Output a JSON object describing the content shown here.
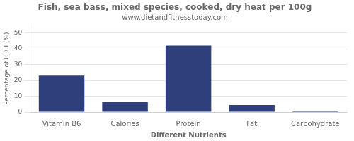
{
  "chart_data": {
    "type": "bar",
    "title": "Fish, sea bass, mixed species, cooked, dry heat per 100g",
    "subtitle": "www.dietandfitnesstoday.com",
    "xlabel": "Different Nutrients",
    "ylabel": "Percentage of RDH (%)",
    "categories": [
      "Vitamin B6",
      "Calories",
      "Protein",
      "Fat",
      "Carbohydrate"
    ],
    "values": [
      23,
      6.5,
      42,
      4.5,
      0.5
    ],
    "color": "#2e3f7c",
    "ylim": [
      0,
      55
    ],
    "yticks": [
      0,
      10,
      20,
      30,
      40,
      50
    ],
    "grid": true
  }
}
